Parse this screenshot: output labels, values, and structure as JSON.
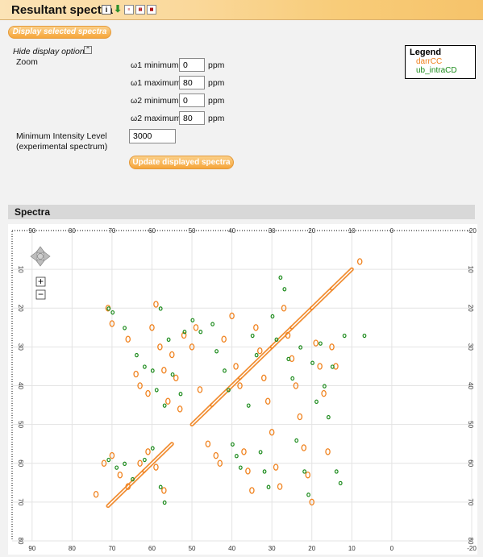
{
  "header": {
    "title": "Resultant spectra"
  },
  "icons": [
    "info-icon",
    "download-icon",
    "doc-icon",
    "pdf-icon",
    "image-icon"
  ],
  "buttons": {
    "display_selected": "Display selected spectra",
    "update_displayed": "Update displayed spectra"
  },
  "options": {
    "hide_label": "Hide display options",
    "toggle_symbol": "⌃",
    "zoom_label": "Zoom",
    "w1_min_label": "ω1 minimum",
    "w1_min_value": "0",
    "w1_max_label": "ω1 maximum",
    "w1_max_value": "80",
    "w2_min_label": "ω2 minimum",
    "w2_min_value": "0",
    "w2_max_label": "ω2 maximum",
    "w2_max_value": "80",
    "unit": "ppm",
    "min_intensity_label_1": "Minimum Intensity Level",
    "min_intensity_label_2": "(experimental spectrum)",
    "min_intensity_value": "3000"
  },
  "legend": {
    "title": "Legend",
    "items": [
      "darrCC",
      "ub_intraCD"
    ]
  },
  "section": {
    "title": "Spectra"
  },
  "nav": {
    "zoom_in": "+",
    "zoom_out": "−"
  },
  "colors": {
    "darrCC": "#f0821e",
    "ub_intraCD": "#1a8a1a",
    "header_orange": "#f6c36a"
  },
  "chart_data": {
    "type": "scatter",
    "xlim": [
      95,
      -20
    ],
    "ylim": [
      0,
      80
    ],
    "x_ticks": [
      "90",
      "80",
      "70",
      "60",
      "50",
      "40",
      "30",
      "20",
      "10",
      "0",
      "-20"
    ],
    "y_ticks": [
      "10",
      "20",
      "30",
      "40",
      "50",
      "60",
      "70",
      "80"
    ],
    "grid": true,
    "series": [
      {
        "name": "darrCC",
        "diagonal": [
          [
            71,
            71
          ],
          [
            62,
            62
          ],
          [
            55,
            55
          ],
          [
            50,
            50
          ],
          [
            45,
            45
          ],
          [
            38,
            38
          ],
          [
            30,
            30
          ],
          [
            25,
            25
          ],
          [
            20,
            20
          ],
          [
            15,
            15
          ],
          [
            10,
            10
          ]
        ],
        "points": [
          [
            71,
            20
          ],
          [
            70,
            24
          ],
          [
            66,
            28
          ],
          [
            64,
            37
          ],
          [
            63,
            40
          ],
          [
            61,
            42
          ],
          [
            59,
            19
          ],
          [
            60,
            25
          ],
          [
            58,
            30
          ],
          [
            57,
            36
          ],
          [
            56,
            44
          ],
          [
            55,
            32
          ],
          [
            54,
            38
          ],
          [
            53,
            46
          ],
          [
            52,
            27
          ],
          [
            50,
            30
          ],
          [
            49,
            25
          ],
          [
            48,
            41
          ],
          [
            46,
            55
          ],
          [
            44,
            58
          ],
          [
            43,
            60
          ],
          [
            42,
            28
          ],
          [
            40,
            22
          ],
          [
            39,
            35
          ],
          [
            38,
            40
          ],
          [
            37,
            57
          ],
          [
            36,
            62
          ],
          [
            35,
            67
          ],
          [
            34,
            25
          ],
          [
            33,
            31
          ],
          [
            32,
            38
          ],
          [
            31,
            44
          ],
          [
            30,
            52
          ],
          [
            29,
            61
          ],
          [
            28,
            66
          ],
          [
            27,
            20
          ],
          [
            26,
            27
          ],
          [
            25,
            33
          ],
          [
            24,
            40
          ],
          [
            23,
            48
          ],
          [
            22,
            56
          ],
          [
            21,
            63
          ],
          [
            20,
            70
          ],
          [
            19,
            29
          ],
          [
            18,
            35
          ],
          [
            17,
            42
          ],
          [
            16,
            57
          ],
          [
            15,
            30
          ],
          [
            14,
            35
          ],
          [
            8,
            8
          ],
          [
            70,
            58
          ],
          [
            68,
            63
          ],
          [
            66,
            66
          ],
          [
            63,
            60
          ],
          [
            61,
            57
          ],
          [
            59,
            61
          ],
          [
            57,
            67
          ],
          [
            72,
            60
          ],
          [
            74,
            68
          ]
        ]
      },
      {
        "name": "ub_intraCD",
        "points": [
          [
            71,
            20
          ],
          [
            70,
            21
          ],
          [
            67,
            25
          ],
          [
            64,
            32
          ],
          [
            62,
            35
          ],
          [
            60,
            36
          ],
          [
            59,
            41
          ],
          [
            57,
            45
          ],
          [
            58,
            20
          ],
          [
            56,
            28
          ],
          [
            55,
            37
          ],
          [
            53,
            42
          ],
          [
            52,
            26
          ],
          [
            50,
            23
          ],
          [
            48,
            26
          ],
          [
            45,
            24
          ],
          [
            44,
            31
          ],
          [
            42,
            36
          ],
          [
            41,
            41
          ],
          [
            40,
            55
          ],
          [
            39,
            58
          ],
          [
            38,
            61
          ],
          [
            36,
            45
          ],
          [
            35,
            27
          ],
          [
            34,
            32
          ],
          [
            33,
            57
          ],
          [
            32,
            62
          ],
          [
            31,
            66
          ],
          [
            30,
            22
          ],
          [
            29,
            28
          ],
          [
            28,
            12
          ],
          [
            27,
            15
          ],
          [
            26,
            33
          ],
          [
            25,
            38
          ],
          [
            24,
            54
          ],
          [
            23,
            30
          ],
          [
            22,
            62
          ],
          [
            21,
            68
          ],
          [
            20,
            34
          ],
          [
            19,
            44
          ],
          [
            18,
            29
          ],
          [
            17,
            40
          ],
          [
            16,
            48
          ],
          [
            15,
            35
          ],
          [
            14,
            62
          ],
          [
            13,
            65
          ],
          [
            12,
            27
          ],
          [
            7,
            27
          ],
          [
            67,
            60
          ],
          [
            65,
            64
          ],
          [
            62,
            59
          ],
          [
            60,
            56
          ],
          [
            58,
            66
          ],
          [
            57,
            70
          ],
          [
            71,
            59
          ],
          [
            69,
            61
          ]
        ]
      }
    ]
  }
}
